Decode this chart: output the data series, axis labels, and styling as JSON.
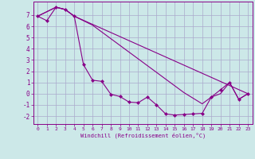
{
  "bg_color": "#cce8e8",
  "grid_color": "#aaaacc",
  "line_color": "#880088",
  "xlabel": "Windchill (Refroidissement éolien,°C)",
  "xlim": [
    -0.5,
    23.5
  ],
  "ylim": [
    -2.7,
    8.2
  ],
  "xticks": [
    0,
    1,
    2,
    3,
    4,
    5,
    6,
    7,
    8,
    9,
    10,
    11,
    12,
    13,
    14,
    15,
    16,
    17,
    18,
    19,
    20,
    21,
    22,
    23
  ],
  "yticks": [
    -2,
    -1,
    0,
    1,
    2,
    3,
    4,
    5,
    6,
    7
  ],
  "curve1_x": [
    0,
    1,
    2,
    3,
    4,
    5,
    6,
    7,
    8,
    9,
    10,
    11,
    12,
    13,
    14,
    15,
    16,
    17,
    18,
    19,
    20,
    21,
    22,
    23
  ],
  "curve1_y": [
    6.9,
    6.5,
    7.7,
    7.5,
    6.9,
    2.6,
    1.2,
    1.1,
    -0.05,
    -0.25,
    -0.75,
    -0.8,
    -0.3,
    -1.0,
    -1.8,
    -1.9,
    -1.85,
    -1.8,
    -1.75,
    -0.3,
    0.35,
    1.0,
    -0.5,
    0.0
  ],
  "curve2_x": [
    0,
    2,
    3,
    4,
    23
  ],
  "curve2_y": [
    6.9,
    7.7,
    7.5,
    6.9,
    0.0
  ],
  "curve3_x": [
    0,
    2,
    3,
    4,
    5,
    6,
    7,
    8,
    9,
    10,
    11,
    12,
    13,
    14,
    15,
    16,
    17,
    18,
    19,
    20,
    21,
    22,
    23
  ],
  "curve3_y": [
    6.9,
    7.7,
    7.5,
    6.9,
    6.5,
    6.1,
    5.5,
    4.9,
    4.3,
    3.7,
    3.1,
    2.5,
    1.9,
    1.3,
    0.7,
    0.1,
    -0.4,
    -0.9,
    -0.3,
    0.0,
    1.0,
    -0.5,
    0.0
  ]
}
